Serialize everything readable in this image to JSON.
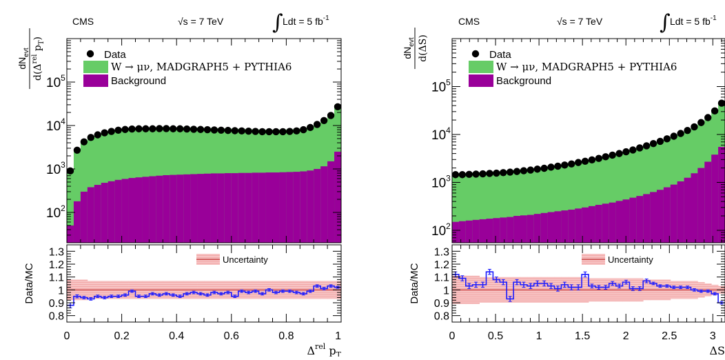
{
  "header": {
    "experiment": "CMS",
    "energy": "√s = 7 TeV",
    "luminosity": "Ldt = 5 fb",
    "lumi_exp": "-1"
  },
  "legend": {
    "data": "Data",
    "signal": "W → μν, MADGRAPH5 + PYTHIA6",
    "background": "Background",
    "uncertainty": "Uncertainty"
  },
  "ratio_ylabel": "Data/MC",
  "colors": {
    "signal": "#66cc66",
    "background": "#990099",
    "data": "#000000",
    "ratio_line": "#1a1aff",
    "uncertainty_fill": "#f5b6b6",
    "uncertainty_line": "#e05050"
  },
  "chart_data": [
    {
      "type": "bar",
      "stacked": true,
      "log_y": true,
      "xlabel_main": "Δ",
      "xlabel_sup": "rel",
      "xlabel_rest": " p",
      "xlabel_sub": "T",
      "ylabel_num": "dN",
      "ylabel_num_sub": "evt",
      "ylabel_den": "d(Δ",
      "ylabel_den_sup": "rel",
      "ylabel_den_rest": " p",
      "ylabel_den_sub": "T",
      "ylabel_den_end": ")",
      "xlim": [
        0,
        1
      ],
      "ylim": [
        20,
        1000000
      ],
      "x_ticks": [
        {
          "v": 0,
          "label": "0"
        },
        {
          "v": 0.2,
          "label": "0.2"
        },
        {
          "v": 0.4,
          "label": "0.4"
        },
        {
          "v": 0.6,
          "label": "0.6"
        },
        {
          "v": 0.8,
          "label": "0.8"
        },
        {
          "v": 1,
          "label": "1"
        }
      ],
      "y_ticks": [
        {
          "v": 100,
          "base": "10",
          "exp": "2"
        },
        {
          "v": 1000,
          "base": "10",
          "exp": "3"
        },
        {
          "v": 10000,
          "base": "10",
          "exp": "4"
        },
        {
          "v": 100000,
          "base": "10",
          "exp": "5"
        }
      ],
      "x_edges": [
        0,
        0.025,
        0.05,
        0.075,
        0.1,
        0.125,
        0.15,
        0.175,
        0.2,
        0.225,
        0.25,
        0.275,
        0.3,
        0.325,
        0.35,
        0.375,
        0.4,
        0.425,
        0.45,
        0.475,
        0.5,
        0.525,
        0.55,
        0.575,
        0.6,
        0.625,
        0.65,
        0.675,
        0.7,
        0.725,
        0.75,
        0.775,
        0.8,
        0.825,
        0.85,
        0.875,
        0.9,
        0.925,
        0.95,
        0.975,
        1.0
      ],
      "series": [
        {
          "name": "Background",
          "values": [
            50,
            180,
            300,
            380,
            430,
            480,
            520,
            560,
            590,
            620,
            640,
            660,
            680,
            700,
            720,
            730,
            740,
            750,
            760,
            770,
            780,
            790,
            790,
            800,
            800,
            810,
            810,
            820,
            820,
            830,
            830,
            840,
            850,
            860,
            880,
            920,
            1000,
            1150,
            1500,
            2500
          ]
        },
        {
          "name": "W → μν, MADGRAPH5 + PYTHIA6",
          "values": [
            900,
            2700,
            4200,
            5300,
            6100,
            6800,
            7300,
            7800,
            8100,
            8300,
            8400,
            8400,
            8400,
            8500,
            8500,
            8400,
            8400,
            8300,
            8200,
            8100,
            8000,
            7900,
            7800,
            7700,
            7600,
            7500,
            7400,
            7300,
            7200,
            7200,
            7200,
            7200,
            7300,
            7500,
            8000,
            9000,
            10600,
            13000,
            17000,
            27000
          ]
        },
        {
          "name": "Data",
          "values": [
            900,
            2700,
            4200,
            5300,
            6100,
            6800,
            7300,
            7800,
            8100,
            8300,
            8400,
            8400,
            8400,
            8500,
            8500,
            8400,
            8400,
            8300,
            8200,
            8100,
            8000,
            7900,
            7800,
            7700,
            7600,
            7500,
            7400,
            7300,
            7200,
            7200,
            7200,
            7200,
            7300,
            7500,
            8000,
            9000,
            10600,
            13000,
            17000,
            27000
          ]
        }
      ],
      "ratio": {
        "ylim": [
          0.75,
          1.35
        ],
        "y_ticks": [
          {
            "v": 0.8,
            "label": "0.8"
          },
          {
            "v": 0.9,
            "label": "0.9"
          },
          {
            "v": 1.0,
            "label": "1"
          },
          {
            "v": 1.1,
            "label": "1.1"
          },
          {
            "v": 1.2,
            "label": "1.2"
          },
          {
            "v": 1.3,
            "label": "1.3"
          }
        ],
        "values": [
          0.88,
          0.95,
          0.94,
          0.93,
          0.95,
          0.94,
          0.95,
          0.95,
          0.96,
          0.99,
          0.95,
          0.95,
          0.97,
          0.96,
          0.97,
          0.96,
          0.95,
          0.97,
          0.98,
          0.97,
          0.96,
          0.98,
          0.97,
          0.98,
          0.95,
          0.99,
          0.98,
          0.99,
          0.97,
          1.0,
          0.98,
          0.99,
          0.99,
          0.98,
          0.97,
          0.99,
          1.03,
          1.01,
          1.03,
          1.02
        ],
        "errors": [
          0.02,
          0.012,
          0.01,
          0.01,
          0.01,
          0.01,
          0.01,
          0.01,
          0.01,
          0.01,
          0.01,
          0.01,
          0.01,
          0.01,
          0.01,
          0.01,
          0.01,
          0.01,
          0.01,
          0.01,
          0.01,
          0.01,
          0.01,
          0.01,
          0.01,
          0.01,
          0.01,
          0.01,
          0.01,
          0.01,
          0.01,
          0.01,
          0.01,
          0.01,
          0.01,
          0.01,
          0.01,
          0.01,
          0.01,
          0.008
        ],
        "uncertainty": [
          0.08,
          0.08,
          0.08,
          0.07,
          0.07,
          0.07,
          0.07,
          0.07,
          0.07,
          0.07,
          0.07,
          0.07,
          0.07,
          0.07,
          0.07,
          0.07,
          0.07,
          0.07,
          0.07,
          0.07,
          0.07,
          0.07,
          0.07,
          0.07,
          0.07,
          0.07,
          0.07,
          0.07,
          0.07,
          0.07,
          0.07,
          0.07,
          0.07,
          0.07,
          0.07,
          0.07,
          0.07,
          0.07,
          0.07,
          0.07
        ]
      }
    },
    {
      "type": "bar",
      "stacked": true,
      "log_y": true,
      "xlabel_main": "ΔS",
      "xlabel_sup": "",
      "xlabel_rest": "",
      "xlabel_sub": "",
      "ylabel_num": "dN",
      "ylabel_num_sub": "evt",
      "ylabel_den": "d(ΔS)",
      "ylabel_den_sup": "",
      "ylabel_den_rest": "",
      "ylabel_den_sub": "",
      "ylabel_den_end": "",
      "xlim": [
        0,
        3.14
      ],
      "ylim": [
        55,
        1000000
      ],
      "x_ticks": [
        {
          "v": 0,
          "label": "0"
        },
        {
          "v": 0.5,
          "label": "0.5"
        },
        {
          "v": 1,
          "label": "1"
        },
        {
          "v": 1.5,
          "label": "1.5"
        },
        {
          "v": 2,
          "label": "2"
        },
        {
          "v": 2.5,
          "label": "2.5"
        },
        {
          "v": 3,
          "label": "3"
        }
      ],
      "y_ticks": [
        {
          "v": 100,
          "base": "10",
          "exp": "2"
        },
        {
          "v": 1000,
          "base": "10",
          "exp": "3"
        },
        {
          "v": 10000,
          "base": "10",
          "exp": "4"
        },
        {
          "v": 100000,
          "base": "10",
          "exp": "5"
        }
      ],
      "x_edges": [
        0,
        0.0785,
        0.157,
        0.2355,
        0.314,
        0.3925,
        0.471,
        0.5495,
        0.628,
        0.7065,
        0.785,
        0.8635,
        0.942,
        1.0205,
        1.099,
        1.1775,
        1.256,
        1.3345,
        1.413,
        1.4915,
        1.57,
        1.6485,
        1.727,
        1.8055,
        1.884,
        1.9625,
        2.041,
        2.1195,
        2.198,
        2.2765,
        2.355,
        2.4335,
        2.512,
        2.5905,
        2.669,
        2.7475,
        2.826,
        2.9045,
        2.983,
        3.0615,
        3.14
      ],
      "series": [
        {
          "name": "Background",
          "values": [
            150,
            155,
            160,
            165,
            170,
            175,
            180,
            185,
            190,
            200,
            205,
            210,
            220,
            230,
            240,
            250,
            260,
            270,
            285,
            300,
            320,
            340,
            360,
            380,
            410,
            440,
            480,
            520,
            570,
            630,
            700,
            790,
            900,
            1050,
            1250,
            1550,
            2000,
            2700,
            3800,
            5500
          ]
        },
        {
          "name": "W → μν, MADGRAPH5 + PYTHIA6",
          "values": [
            1400,
            1400,
            1420,
            1450,
            1470,
            1500,
            1520,
            1560,
            1600,
            1650,
            1700,
            1760,
            1830,
            1900,
            2000,
            2100,
            2200,
            2350,
            2500,
            2650,
            2850,
            3050,
            3300,
            3550,
            3850,
            4200,
            4600,
            5050,
            5600,
            6200,
            6900,
            7800,
            8800,
            10000,
            11500,
            13500,
            16500,
            21000,
            29000,
            42000
          ]
        },
        {
          "name": "Data",
          "values": [
            1450,
            1450,
            1470,
            1490,
            1510,
            1540,
            1560,
            1600,
            1640,
            1690,
            1750,
            1810,
            1890,
            1970,
            2080,
            2180,
            2300,
            2430,
            2600,
            2760,
            2950,
            3170,
            3420,
            3700,
            4000,
            4350,
            4750,
            5250,
            5800,
            6450,
            7200,
            8100,
            9200,
            10500,
            12100,
            14400,
            17700,
            22500,
            31000,
            45000
          ]
        }
      ],
      "ratio": {
        "ylim": [
          0.75,
          1.35
        ],
        "y_ticks": [
          {
            "v": 0.8,
            "label": "0.8"
          },
          {
            "v": 0.9,
            "label": "0.9"
          },
          {
            "v": 1.0,
            "label": "1"
          },
          {
            "v": 1.1,
            "label": "1.1"
          },
          {
            "v": 1.2,
            "label": "1.2"
          },
          {
            "v": 1.3,
            "label": "1.3"
          }
        ],
        "values": [
          1.12,
          1.09,
          1.03,
          1.04,
          1.04,
          1.14,
          1.08,
          1.06,
          0.93,
          1.06,
          1.04,
          1.03,
          1.05,
          1.05,
          1.03,
          1.01,
          1.04,
          1.02,
          1.02,
          1.12,
          1.03,
          1.02,
          1.02,
          1.05,
          1.03,
          1.06,
          1.01,
          1.01,
          1.07,
          1.05,
          1.03,
          1.03,
          1.02,
          1.02,
          1.02,
          1.0,
          0.99,
          0.99,
          0.97,
          0.9
        ],
        "errors": [
          0.02,
          0.02,
          0.02,
          0.02,
          0.02,
          0.02,
          0.02,
          0.02,
          0.02,
          0.02,
          0.02,
          0.02,
          0.02,
          0.02,
          0.02,
          0.02,
          0.02,
          0.02,
          0.02,
          0.02,
          0.015,
          0.015,
          0.015,
          0.015,
          0.015,
          0.015,
          0.015,
          0.015,
          0.015,
          0.01,
          0.01,
          0.01,
          0.01,
          0.01,
          0.01,
          0.01,
          0.01,
          0.01,
          0.01,
          0.01
        ],
        "uncertainty": [
          0.11,
          0.11,
          0.11,
          0.11,
          0.1,
          0.1,
          0.1,
          0.1,
          0.1,
          0.1,
          0.1,
          0.1,
          0.1,
          0.1,
          0.1,
          0.1,
          0.1,
          0.1,
          0.1,
          0.1,
          0.09,
          0.09,
          0.09,
          0.09,
          0.09,
          0.09,
          0.09,
          0.09,
          0.08,
          0.08,
          0.08,
          0.08,
          0.07,
          0.07,
          0.07,
          0.07,
          0.06,
          0.05,
          0.04,
          0.03
        ]
      }
    }
  ]
}
